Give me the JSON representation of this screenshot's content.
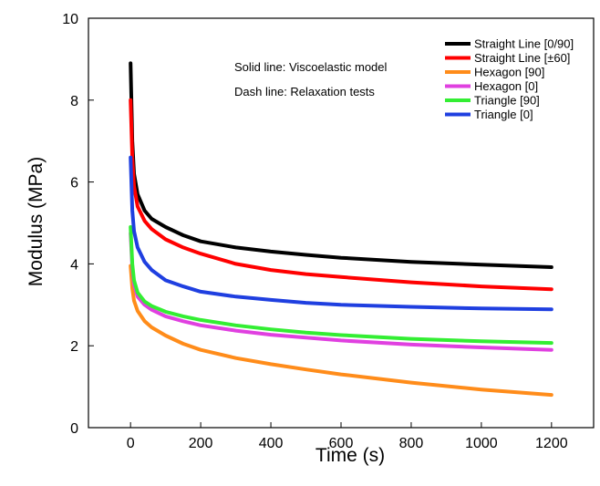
{
  "chart_data": {
    "type": "line",
    "title": "",
    "xlabel": "Time (s)",
    "ylabel": "Modulus (MPa)",
    "xlim": [
      -120,
      1320
    ],
    "ylim": [
      0,
      10
    ],
    "xticks": [
      0,
      200,
      400,
      600,
      800,
      1000,
      1200
    ],
    "yticks": [
      0,
      2,
      4,
      6,
      8,
      10
    ],
    "grid": false,
    "legend_position": "top-right",
    "annotations": [
      "Solid line: Viscoelastic model",
      "Dash line: Relaxation tests"
    ],
    "series": [
      {
        "name": "Straight Line [0/90]",
        "color": "#000000",
        "x": [
          0,
          5,
          10,
          20,
          40,
          60,
          100,
          150,
          200,
          300,
          400,
          500,
          600,
          800,
          1000,
          1200
        ],
        "y": [
          8.9,
          7.0,
          6.2,
          5.7,
          5.3,
          5.1,
          4.9,
          4.7,
          4.55,
          4.4,
          4.3,
          4.22,
          4.15,
          4.05,
          3.98,
          3.92
        ]
      },
      {
        "name": "Straight Line [±60]",
        "color": "#ff0000",
        "x": [
          0,
          5,
          10,
          20,
          40,
          60,
          100,
          150,
          200,
          300,
          400,
          500,
          600,
          800,
          1000,
          1200
        ],
        "y": [
          8.0,
          6.6,
          5.9,
          5.4,
          5.05,
          4.85,
          4.6,
          4.4,
          4.25,
          4.0,
          3.85,
          3.75,
          3.68,
          3.55,
          3.45,
          3.38
        ]
      },
      {
        "name": "Hexagon [90]",
        "color": "#ff8c1a",
        "x": [
          0,
          5,
          10,
          20,
          40,
          60,
          100,
          150,
          200,
          300,
          400,
          500,
          600,
          800,
          1000,
          1200
        ],
        "y": [
          3.95,
          3.4,
          3.1,
          2.85,
          2.6,
          2.45,
          2.25,
          2.05,
          1.9,
          1.7,
          1.55,
          1.42,
          1.3,
          1.1,
          0.93,
          0.8
        ]
      },
      {
        "name": "Hexagon [0]",
        "color": "#e040e0",
        "x": [
          0,
          5,
          10,
          20,
          40,
          60,
          100,
          150,
          200,
          300,
          400,
          500,
          600,
          800,
          1000,
          1200
        ],
        "y": [
          4.75,
          3.9,
          3.5,
          3.2,
          3.0,
          2.88,
          2.72,
          2.6,
          2.5,
          2.37,
          2.27,
          2.2,
          2.13,
          2.03,
          1.96,
          1.9
        ]
      },
      {
        "name": "Triangle [90]",
        "color": "#33ee33",
        "x": [
          0,
          5,
          10,
          20,
          40,
          60,
          100,
          150,
          200,
          300,
          400,
          500,
          600,
          800,
          1000,
          1200
        ],
        "y": [
          4.9,
          4.0,
          3.6,
          3.3,
          3.08,
          2.97,
          2.83,
          2.72,
          2.63,
          2.5,
          2.4,
          2.32,
          2.26,
          2.17,
          2.11,
          2.07
        ]
      },
      {
        "name": "Triangle [0]",
        "color": "#1f3fe0",
        "x": [
          0,
          5,
          10,
          20,
          40,
          60,
          100,
          150,
          200,
          300,
          400,
          500,
          600,
          800,
          1000,
          1200
        ],
        "y": [
          6.6,
          5.3,
          4.8,
          4.4,
          4.05,
          3.85,
          3.6,
          3.45,
          3.32,
          3.2,
          3.12,
          3.05,
          3.0,
          2.95,
          2.91,
          2.89
        ]
      }
    ]
  }
}
